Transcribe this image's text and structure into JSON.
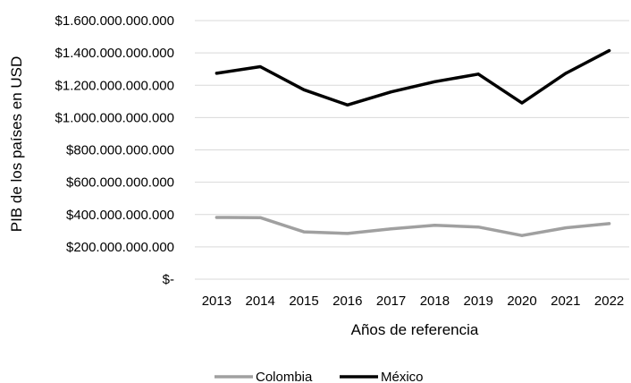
{
  "chart_data": {
    "type": "line",
    "title": "",
    "xlabel": "Años de referencia",
    "ylabel": "PIB de los países en USD",
    "ylim": [
      0,
      1600000000000
    ],
    "yticks": [
      {
        "value": 0,
        "label": "$-"
      },
      {
        "value": 200000000000,
        "label": "$200.000.000.000"
      },
      {
        "value": 400000000000,
        "label": "$400.000.000.000"
      },
      {
        "value": 600000000000,
        "label": "$600.000.000.000"
      },
      {
        "value": 800000000000,
        "label": "$800.000.000.000"
      },
      {
        "value": 1000000000000,
        "label": "$1.000.000.000.000"
      },
      {
        "value": 1200000000000,
        "label": "$1.200.000.000.000"
      },
      {
        "value": 1400000000000,
        "label": "$1.400.000.000.000"
      },
      {
        "value": 1600000000000,
        "label": "$1.600.000.000.000"
      }
    ],
    "categories": [
      "2013",
      "2014",
      "2015",
      "2016",
      "2017",
      "2018",
      "2019",
      "2020",
      "2021",
      "2022"
    ],
    "grid": "horizontal",
    "legend": "bottom",
    "series": [
      {
        "name": "Colombia",
        "color": "#a0a0a0",
        "values": [
          382000000000,
          381000000000,
          293000000000,
          283000000000,
          311000000000,
          334000000000,
          323000000000,
          270000000000,
          318000000000,
          344000000000
        ]
      },
      {
        "name": "México",
        "color": "#000000",
        "values": [
          1274000000000,
          1315000000000,
          1172000000000,
          1078000000000,
          1159000000000,
          1222000000000,
          1269000000000,
          1090000000000,
          1273000000000,
          1414000000000
        ]
      }
    ]
  }
}
